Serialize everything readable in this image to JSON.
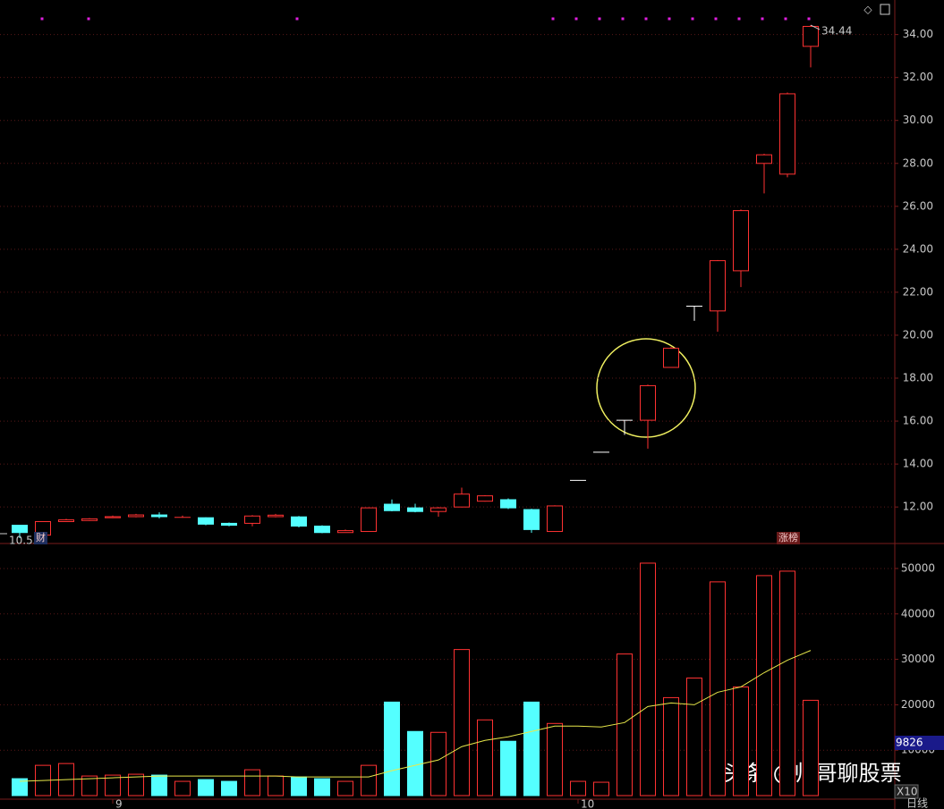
{
  "chart_data": {
    "type": "candlestick",
    "categories": [
      null,
      null,
      null,
      null,
      "9",
      null,
      null,
      null,
      null,
      null,
      null,
      null,
      null,
      null,
      null,
      null,
      null,
      null,
      null,
      null,
      null,
      null,
      null,
      null,
      "10",
      null,
      null,
      null,
      null,
      null,
      null,
      null,
      null,
      null,
      null
    ],
    "open": [
      11.15,
      10.69,
      11.32,
      11.37,
      11.5,
      11.55,
      11.63,
      11.52,
      11.5,
      11.24,
      11.24,
      11.55,
      11.54,
      11.11,
      10.81,
      10.86,
      12.13,
      11.96,
      11.79,
      12.0,
      12.27,
      12.34,
      11.88,
      10.86,
      13.24,
      14.55,
      16.04,
      16.04,
      18.5,
      21.35,
      21.13,
      23.0,
      28.0,
      27.5,
      33.45
    ],
    "high": [
      11.15,
      11.32,
      11.45,
      11.48,
      11.6,
      11.68,
      11.75,
      11.6,
      11.52,
      11.28,
      11.62,
      11.68,
      11.58,
      11.15,
      10.95,
      11.98,
      12.35,
      12.15,
      12.0,
      12.9,
      12.55,
      12.4,
      11.92,
      12.08,
      13.24,
      14.55,
      16.04,
      17.7,
      19.45,
      21.35,
      23.5,
      25.85,
      28.45,
      31.3,
      34.44
    ],
    "low": [
      10.55,
      10.69,
      11.3,
      11.35,
      11.48,
      11.52,
      11.47,
      11.5,
      11.15,
      11.1,
      11.1,
      11.52,
      11.05,
      10.78,
      10.8,
      10.84,
      11.8,
      11.75,
      11.55,
      11.98,
      12.25,
      11.9,
      10.8,
      10.84,
      13.24,
      14.55,
      15.36,
      14.72,
      18.48,
      20.67,
      20.16,
      22.24,
      26.6,
      27.35,
      32.47
    ],
    "close": [
      10.81,
      11.32,
      11.4,
      11.45,
      11.55,
      11.63,
      11.55,
      11.55,
      11.2,
      11.15,
      11.58,
      11.62,
      11.11,
      10.81,
      10.9,
      11.96,
      11.83,
      11.79,
      11.96,
      12.6,
      12.52,
      11.96,
      10.95,
      12.05,
      13.24,
      14.55,
      16.04,
      17.65,
      19.39,
      21.35,
      23.47,
      25.8,
      28.4,
      31.24,
      34.38
    ],
    "up_color": "#ff3232",
    "down_color": "#54ffff",
    "flat_color": "#ffffff",
    "ylim": [
      10.3,
      35.4
    ],
    "yticks": [
      {
        "value": 12,
        "label": "12.00"
      },
      {
        "value": 14,
        "label": "14.00"
      },
      {
        "value": 16,
        "label": "16.00"
      },
      {
        "value": 18,
        "label": "18.00"
      },
      {
        "value": 20,
        "label": "20.00"
      },
      {
        "value": 22,
        "label": "22.00"
      },
      {
        "value": 24,
        "label": "24.00"
      },
      {
        "value": 26,
        "label": "26.00"
      },
      {
        "value": 28,
        "label": "28.00"
      },
      {
        "value": 30,
        "label": "30.00"
      },
      {
        "value": 32,
        "label": "32.00"
      },
      {
        "value": 34,
        "label": "34.00"
      }
    ],
    "annotations": [
      {
        "index": 0,
        "value": 10.55,
        "label": "10.55"
      },
      {
        "index": 34,
        "value": 34.44,
        "label": "34.44"
      }
    ],
    "badges": [
      "财",
      "涨榜"
    ],
    "volume": [
      3725,
      6667,
      7060,
      4314,
      4510,
      4706,
      4510,
      3137,
      3529,
      3137,
      5686,
      4314,
      4118,
      3725,
      3137,
      6667,
      20588,
      14118,
      13922,
      32157,
      16667,
      11961,
      20588,
      15882,
      3137,
      2941,
      31176,
      51176,
      21569,
      25882,
      47059,
      23922,
      48431,
      49412,
      20980
    ],
    "volume_ma": [
      3137,
      3333,
      3529,
      3725,
      3922,
      4118,
      4314,
      4314,
      4314,
      4314,
      4314,
      4314,
      4118,
      4118,
      4118,
      4118,
      5490,
      6667,
      7843,
      10784,
      12157,
      12941,
      14118,
      15294,
      15294,
      15098,
      16078,
      19608,
      20392,
      20000,
      22745,
      23922,
      27059,
      29804,
      31961
    ],
    "volume_ma_color": "#e8e84a",
    "volume_ylim": [
      0,
      55500
    ],
    "volume_yticks": [
      10000,
      20000,
      30000,
      40000,
      50000
    ],
    "volume_label": "9826",
    "scale_label": "X10",
    "period_label": "日线",
    "watermark": "头条 @帅哥聊股票"
  }
}
